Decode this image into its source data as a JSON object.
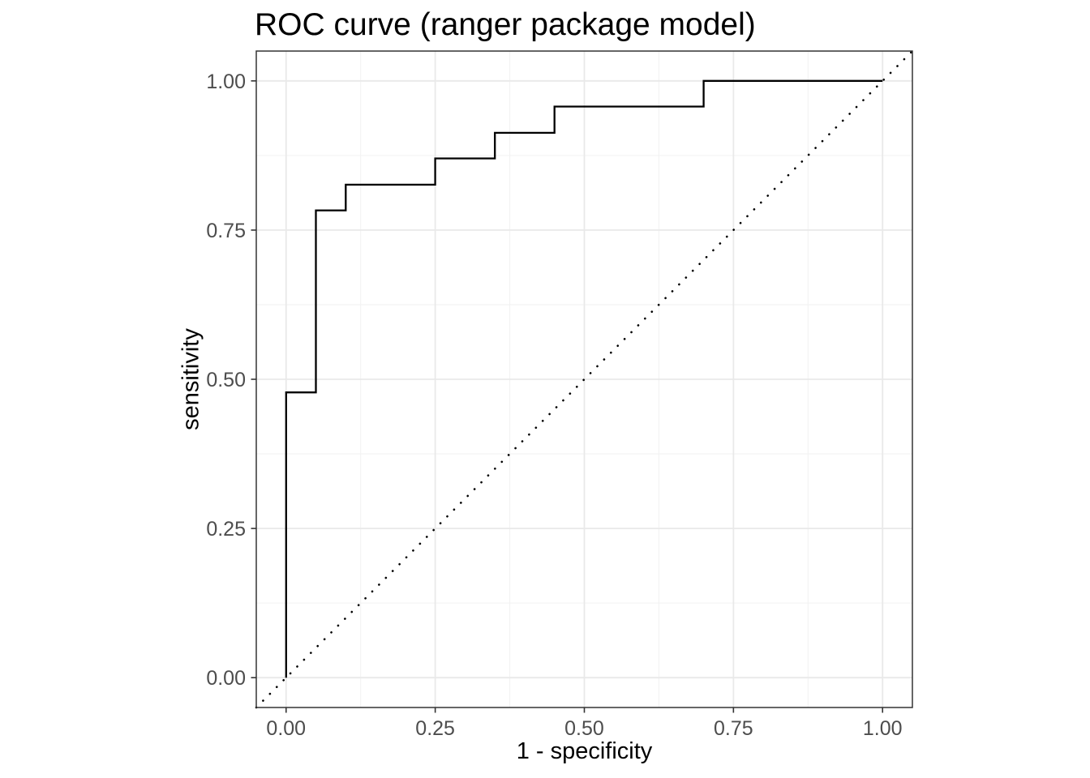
{
  "figure": {
    "background": "#ffffff"
  },
  "chart_data": {
    "type": "line",
    "subtype": "roc-step-curve",
    "title": "ROC curve (ranger package model)",
    "xlabel": "1 - specificity",
    "ylabel": "sensitivity",
    "xlim": [
      -0.05,
      1.05
    ],
    "ylim": [
      -0.05,
      1.05
    ],
    "grid": "major-and-minor",
    "legend": "none",
    "x_ticks": {
      "values": [
        0,
        0.25,
        0.5,
        0.75,
        1
      ],
      "labels": [
        "0.00",
        "0.25",
        "0.50",
        "0.75",
        "1.00"
      ]
    },
    "y_ticks": {
      "values": [
        0,
        0.25,
        0.5,
        0.75,
        1
      ],
      "labels": [
        "0.00",
        "0.25",
        "0.50",
        "0.75",
        "1.00"
      ]
    },
    "minor_tick_values": [
      0.125,
      0.375,
      0.625,
      0.875
    ],
    "series": [
      {
        "name": "roc-curve",
        "style": "solid-step",
        "color": "#000000",
        "stroke_width": 2.3,
        "points": [
          [
            0,
            0
          ],
          [
            0,
            0.478
          ],
          [
            0.05,
            0.478
          ],
          [
            0.05,
            0.783
          ],
          [
            0.1,
            0.783
          ],
          [
            0.1,
            0.826
          ],
          [
            0.25,
            0.826
          ],
          [
            0.25,
            0.87
          ],
          [
            0.35,
            0.87
          ],
          [
            0.35,
            0.913
          ],
          [
            0.45,
            0.913
          ],
          [
            0.45,
            0.957
          ],
          [
            0.7,
            0.957
          ],
          [
            0.7,
            1
          ],
          [
            1,
            1
          ]
        ]
      },
      {
        "name": "chance-diagonal",
        "style": "dotted",
        "color": "#000000",
        "stroke_width": 2.6,
        "points": [
          [
            -0.05,
            -0.05
          ],
          [
            1.05,
            1.05
          ]
        ]
      }
    ],
    "colors": {
      "panel_background": "#ffffff",
      "panel_border": "#333333",
      "grid_major": "#e9e9e9",
      "grid_minor": "#f2f2f2",
      "tick_mark": "#333333",
      "tick_label": "#4d4d4d",
      "axis_title": "#000000",
      "title": "#000000"
    }
  }
}
